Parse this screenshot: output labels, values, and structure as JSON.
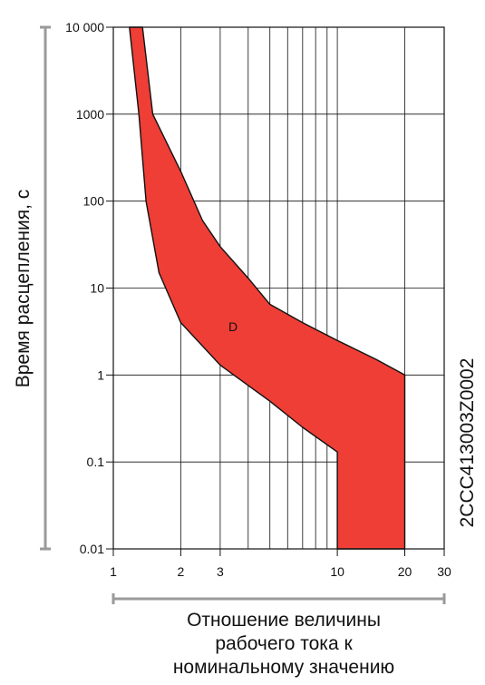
{
  "chart_data": {
    "type": "area",
    "x_scale": "log",
    "y_scale": "log",
    "xlim": [
      1,
      30
    ],
    "ylim": [
      0.01,
      10000
    ],
    "x_ticks": [
      1,
      2,
      3,
      10,
      20,
      30
    ],
    "x_tick_labels": [
      "1",
      "2",
      "3",
      "10",
      "20",
      "30"
    ],
    "y_ticks": [
      0.01,
      0.1,
      1,
      10,
      100,
      1000,
      10000
    ],
    "y_tick_labels": [
      "0.01",
      "0.1",
      "1",
      "10",
      "100",
      "1000",
      "10 000"
    ],
    "grid": true,
    "xlabel_lines": [
      "Отношение величины",
      "рабочего тока к",
      "номинальному значению"
    ],
    "ylabel": "Время расцепления, с",
    "side_code": "2CCC413003Z0002",
    "band_label": "D",
    "band_color": "#ee3e36",
    "series": [
      {
        "values_upper": [
          [
            1.35,
            10000
          ],
          [
            1.5,
            1000
          ],
          [
            2,
            220
          ],
          [
            2.5,
            60
          ],
          [
            3,
            30
          ],
          [
            4,
            13
          ],
          [
            5,
            6.5
          ],
          [
            7,
            4
          ],
          [
            10,
            2.5
          ],
          [
            15,
            1.5
          ],
          [
            20,
            1.0
          ]
        ],
        "values_lower": [
          [
            1.18,
            10000
          ],
          [
            1.3,
            1000
          ],
          [
            1.4,
            100
          ],
          [
            1.6,
            15
          ],
          [
            2,
            4
          ],
          [
            3,
            1.3
          ],
          [
            5,
            0.5
          ],
          [
            7,
            0.25
          ],
          [
            10,
            0.13
          ],
          [
            10,
            0.01
          ],
          [
            20,
            0.01
          ],
          [
            20,
            1.0
          ]
        ]
      }
    ]
  }
}
